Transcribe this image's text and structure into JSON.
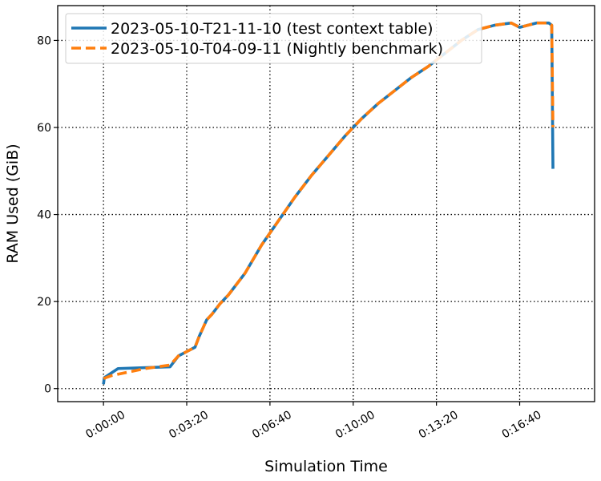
{
  "chart_data": {
    "type": "line",
    "title": "",
    "xlabel": "Simulation Time",
    "ylabel": "RAM Used (GiB)",
    "x_unit": "seconds of simulation time",
    "xlim": [
      -110,
      1180
    ],
    "ylim": [
      -3,
      88
    ],
    "x_ticks": [
      {
        "value": 0,
        "label": "0:00:00"
      },
      {
        "value": 200,
        "label": "0:03:20"
      },
      {
        "value": 400,
        "label": "0:06:40"
      },
      {
        "value": 600,
        "label": "0:10:00"
      },
      {
        "value": 800,
        "label": "0:13:20"
      },
      {
        "value": 1000,
        "label": "0:16:40"
      }
    ],
    "x_tick_rotation_deg": 30,
    "y_ticks": [
      {
        "value": 0,
        "label": "0"
      },
      {
        "value": 20,
        "label": "20"
      },
      {
        "value": 40,
        "label": "40"
      },
      {
        "value": 60,
        "label": "60"
      },
      {
        "value": 80,
        "label": "80"
      }
    ],
    "grid": true,
    "grid_style": "dotted",
    "legend_position": "top-left",
    "series": [
      {
        "name": "2023-05-10-T21-11-10 (test context table)",
        "color": "#1f77b4",
        "line_style": "solid",
        "x": [
          0,
          2,
          35,
          160,
          180,
          200,
          220,
          230,
          248,
          260,
          280,
          300,
          340,
          380,
          420,
          460,
          500,
          540,
          580,
          620,
          660,
          700,
          740,
          780,
          820,
          860,
          900,
          940,
          980,
          1000,
          1040,
          1070,
          1077,
          1080
        ],
        "y": [
          1.0,
          2.5,
          4.6,
          5.0,
          7.5,
          8.5,
          9.5,
          12.0,
          15.8,
          17.0,
          19.5,
          21.5,
          26.5,
          33.0,
          38.5,
          44.0,
          49.0,
          53.5,
          58.0,
          62.0,
          65.5,
          68.5,
          71.5,
          74.0,
          77.0,
          80.0,
          82.5,
          83.5,
          84.0,
          83.0,
          84.0,
          84.0,
          83.5,
          50.5
        ]
      },
      {
        "name": "2023-05-10-T04-09-11 (Nightly benchmark)",
        "color": "#ff7f0e",
        "line_style": "dashed",
        "x": [
          0,
          20,
          60,
          100,
          160,
          180,
          200,
          220,
          230,
          248,
          260,
          280,
          300,
          340,
          380,
          420,
          460,
          500,
          540,
          580,
          620,
          660,
          700,
          740,
          780,
          820,
          860,
          900,
          940,
          980,
          1000,
          1040,
          1070,
          1077,
          1080
        ],
        "y": [
          2.3,
          3.0,
          3.8,
          4.6,
          5.4,
          7.5,
          8.5,
          9.5,
          12.0,
          15.8,
          17.0,
          19.5,
          21.5,
          26.5,
          33.0,
          38.5,
          44.0,
          49.0,
          53.5,
          58.0,
          62.0,
          65.5,
          68.5,
          71.5,
          74.0,
          77.0,
          80.0,
          82.5,
          83.5,
          84.0,
          83.0,
          84.0,
          84.0,
          83.5,
          60.0
        ]
      }
    ]
  }
}
